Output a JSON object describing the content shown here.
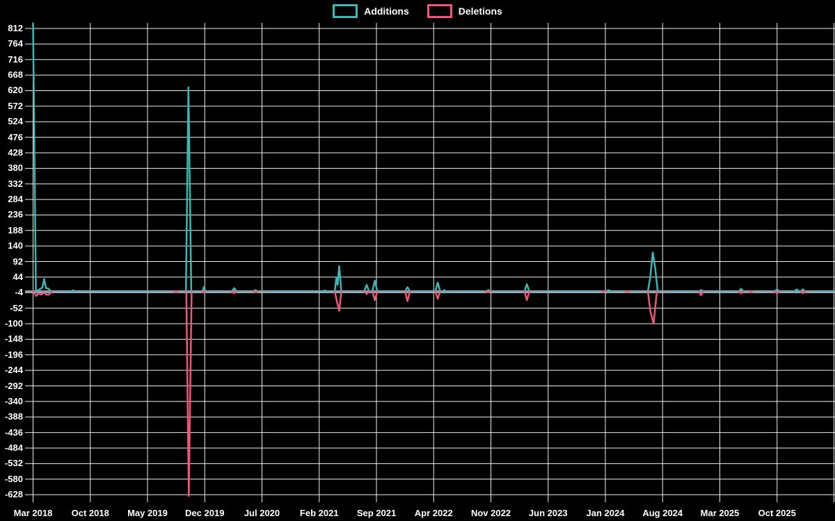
{
  "legend": {
    "items": [
      {
        "label": "Additions",
        "color": "#3db6b6"
      },
      {
        "label": "Deletions",
        "color": "#ef5777"
      }
    ]
  },
  "chart_data": {
    "type": "line",
    "title": "",
    "xlabel": "",
    "ylabel": "",
    "legend_position": "top-center",
    "grid": true,
    "colors": {
      "background": "#000000",
      "grid": "#f0f0f0",
      "text": "#ffffff",
      "additions": "#3db6b6",
      "deletions": "#ef5777",
      "zero_line": "#7fa3b3"
    },
    "y_axis": {
      "max": 812,
      "min": -628,
      "tick_step": 48,
      "ticks": [
        812,
        764,
        716,
        668,
        620,
        572,
        524,
        476,
        428,
        380,
        332,
        284,
        236,
        188,
        140,
        92,
        44,
        -4,
        -52,
        -100,
        -148,
        -196,
        -244,
        -292,
        -340,
        -388,
        -436,
        -484,
        -532,
        -580,
        -628
      ]
    },
    "x_axis": {
      "start_month": "2018-03",
      "months_per_gridline": 7,
      "total_months": 98,
      "labels": [
        "Mar 2018",
        "Oct 2018",
        "May 2019",
        "Dec 2019",
        "Jul 2020",
        "Feb 2021",
        "Sep 2021",
        "Apr 2022",
        "Nov 2022",
        "Jun 2023",
        "Jan 2024",
        "Aug 2024",
        "Mar 2025",
        "Oct 2025"
      ],
      "extra_right_gridline": true
    },
    "series": [
      {
        "name": "Additions",
        "color": "#3db6b6",
        "points_note": "x = months after Mar 2018, y = lines added; first spike clipped at top of plot (~830, axis max 812)",
        "points": [
          [
            0,
            830
          ],
          [
            0.35,
            2
          ],
          [
            0.6,
            3
          ],
          [
            0.9,
            8
          ],
          [
            1.15,
            12
          ],
          [
            1.35,
            38
          ],
          [
            1.6,
            10
          ],
          [
            1.9,
            8
          ],
          [
            2.2,
            0
          ],
          [
            4.7,
            0
          ],
          [
            4.9,
            3
          ],
          [
            5.1,
            0
          ],
          [
            18.7,
            0
          ],
          [
            19.0,
            630
          ],
          [
            19.35,
            0
          ],
          [
            20.7,
            0
          ],
          [
            20.9,
            13
          ],
          [
            21.1,
            0
          ],
          [
            24.3,
            0
          ],
          [
            24.6,
            10
          ],
          [
            24.9,
            0
          ],
          [
            26.9,
            0
          ],
          [
            27.2,
            4
          ],
          [
            27.5,
            0
          ],
          [
            35.5,
            0
          ],
          [
            35.7,
            3
          ],
          [
            35.9,
            0
          ],
          [
            36.9,
            0
          ],
          [
            37.1,
            42
          ],
          [
            37.25,
            20
          ],
          [
            37.45,
            78
          ],
          [
            37.7,
            0
          ],
          [
            40.5,
            0
          ],
          [
            40.8,
            20
          ],
          [
            41.1,
            0
          ],
          [
            41.5,
            0
          ],
          [
            41.8,
            33
          ],
          [
            42.1,
            0
          ],
          [
            45.5,
            0
          ],
          [
            45.8,
            13
          ],
          [
            46.1,
            0
          ],
          [
            49.2,
            0
          ],
          [
            49.5,
            27
          ],
          [
            49.8,
            0
          ],
          [
            50.1,
            0
          ],
          [
            50.3,
            4
          ],
          [
            50.5,
            0
          ],
          [
            55.4,
            0
          ],
          [
            55.7,
            4
          ],
          [
            56.0,
            0
          ],
          [
            60.1,
            0
          ],
          [
            60.4,
            22
          ],
          [
            60.7,
            0
          ],
          [
            70.1,
            0
          ],
          [
            70.4,
            4
          ],
          [
            70.7,
            0
          ],
          [
            75.2,
            0
          ],
          [
            75.5,
            45
          ],
          [
            75.8,
            120
          ],
          [
            76.1,
            70
          ],
          [
            76.4,
            0
          ],
          [
            81.4,
            0
          ],
          [
            81.7,
            4
          ],
          [
            82.0,
            0
          ],
          [
            86.3,
            0
          ],
          [
            86.6,
            8
          ],
          [
            86.9,
            0
          ],
          [
            90.7,
            0
          ],
          [
            91.0,
            6
          ],
          [
            91.3,
            0
          ],
          [
            93.1,
            0
          ],
          [
            93.4,
            6
          ],
          [
            93.7,
            0
          ],
          [
            93.9,
            0
          ],
          [
            94.15,
            6
          ],
          [
            94.4,
            0
          ]
        ]
      },
      {
        "name": "Deletions",
        "color": "#ef5777",
        "points_note": "x = months after Mar 2018, y = -(lines deleted); deepest spike ~-628 (axis min)",
        "points": [
          [
            0,
            0
          ],
          [
            0.4,
            -14
          ],
          [
            0.7,
            -6
          ],
          [
            1.0,
            -10
          ],
          [
            1.3,
            -4
          ],
          [
            1.6,
            -10
          ],
          [
            1.95,
            -10
          ],
          [
            2.3,
            0
          ],
          [
            17.3,
            0
          ],
          [
            17.5,
            -3
          ],
          [
            17.7,
            0
          ],
          [
            18.75,
            0
          ],
          [
            19.05,
            -632
          ],
          [
            19.4,
            0
          ],
          [
            20.7,
            0
          ],
          [
            20.9,
            -4
          ],
          [
            21.1,
            0
          ],
          [
            24.3,
            0
          ],
          [
            24.6,
            -6
          ],
          [
            24.9,
            0
          ],
          [
            26.9,
            0
          ],
          [
            27.2,
            -3
          ],
          [
            27.5,
            0
          ],
          [
            36.9,
            0
          ],
          [
            37.15,
            -30
          ],
          [
            37.45,
            -60
          ],
          [
            37.7,
            0
          ],
          [
            40.5,
            0
          ],
          [
            40.8,
            -8
          ],
          [
            41.1,
            0
          ],
          [
            41.5,
            0
          ],
          [
            41.8,
            -27
          ],
          [
            42.1,
            0
          ],
          [
            45.5,
            0
          ],
          [
            45.8,
            -30
          ],
          [
            46.1,
            0
          ],
          [
            49.2,
            0
          ],
          [
            49.5,
            -23
          ],
          [
            49.8,
            0
          ],
          [
            55.4,
            0
          ],
          [
            55.7,
            -3
          ],
          [
            56.0,
            0
          ],
          [
            60.1,
            0
          ],
          [
            60.4,
            -27
          ],
          [
            60.7,
            0
          ],
          [
            69.6,
            0
          ],
          [
            69.8,
            -2
          ],
          [
            70.0,
            0
          ],
          [
            72.5,
            0
          ],
          [
            72.7,
            -2
          ],
          [
            72.9,
            0
          ],
          [
            75.2,
            0
          ],
          [
            75.5,
            -60
          ],
          [
            75.9,
            -100
          ],
          [
            76.3,
            0
          ],
          [
            81.4,
            0
          ],
          [
            81.7,
            -12
          ],
          [
            82.0,
            0
          ],
          [
            86.3,
            0
          ],
          [
            86.6,
            -6
          ],
          [
            86.9,
            0
          ],
          [
            87.6,
            0
          ],
          [
            87.8,
            -3
          ],
          [
            88.0,
            0
          ],
          [
            90.7,
            0
          ],
          [
            91.0,
            -6
          ],
          [
            91.3,
            0
          ],
          [
            93.9,
            0
          ],
          [
            94.15,
            -6
          ],
          [
            94.4,
            0
          ]
        ]
      }
    ]
  }
}
